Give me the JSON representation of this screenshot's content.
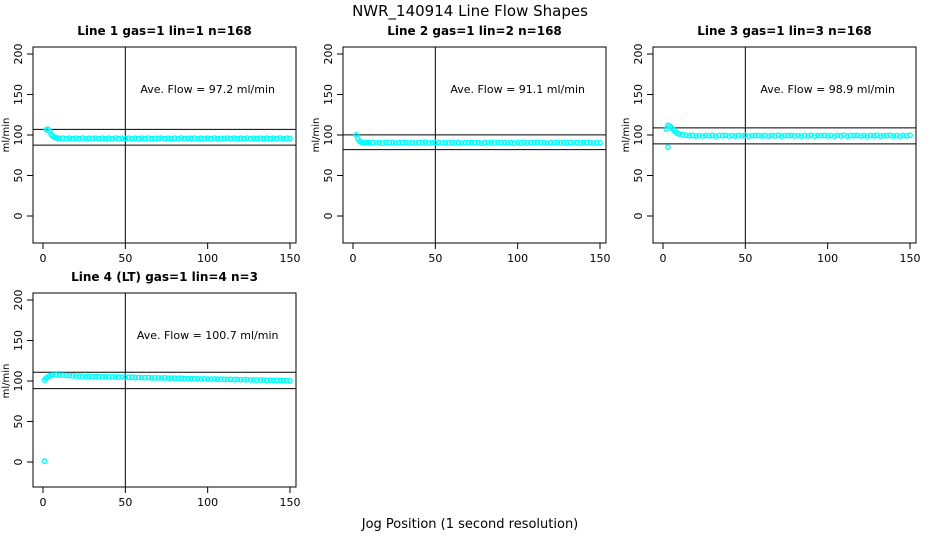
{
  "figure": {
    "title": "NWR_140914  Line Flow Shapes",
    "xlabel": "Jog Position (1 second resolution)",
    "background": "#ffffff",
    "point_color": "#00ffff",
    "line_color": "#000000"
  },
  "chart_data": [
    {
      "type": "scatter",
      "id": "line1",
      "title": "Line 1 gas=1 lin=1 n=168",
      "n": 168,
      "ylabel": "ml/min",
      "annotation": "Ave. Flow =  97.2  ml/min",
      "ave_flow": 97.2,
      "xlim": [
        0,
        150
      ],
      "xticks": [
        0,
        50,
        100,
        150
      ],
      "yticks": [
        0,
        50,
        100,
        150,
        200
      ],
      "vline_x": 50,
      "hlines": [
        106.9,
        87.5
      ],
      "points": [
        [
          2,
          106.5
        ],
        [
          3,
          107.0
        ],
        [
          4,
          104.5
        ],
        [
          5,
          100.8
        ],
        [
          6,
          98.4
        ],
        [
          7,
          97.2
        ],
        [
          8,
          96.6
        ],
        [
          9,
          96.1
        ],
        [
          10,
          95.8
        ],
        [
          12,
          96.2
        ],
        [
          14,
          95.5
        ],
        [
          16,
          96.0
        ],
        [
          18,
          95.3
        ],
        [
          20,
          96.1
        ],
        [
          22,
          95.6
        ],
        [
          24,
          96.3
        ],
        [
          26,
          95.4
        ],
        [
          28,
          95.9
        ],
        [
          30,
          95.8
        ],
        [
          32,
          96.2
        ],
        [
          34,
          95.5
        ],
        [
          36,
          96.0
        ],
        [
          38,
          95.3
        ],
        [
          40,
          96.1
        ],
        [
          42,
          95.6
        ],
        [
          44,
          96.3
        ],
        [
          46,
          95.4
        ],
        [
          48,
          95.9
        ],
        [
          50,
          95.8
        ],
        [
          52,
          96.2
        ],
        [
          54,
          95.5
        ],
        [
          56,
          96.0
        ],
        [
          58,
          95.3
        ],
        [
          60,
          96.1
        ],
        [
          62,
          95.6
        ],
        [
          64,
          96.3
        ],
        [
          66,
          95.4
        ],
        [
          68,
          95.9
        ],
        [
          70,
          95.8
        ],
        [
          72,
          96.2
        ],
        [
          74,
          95.5
        ],
        [
          76,
          96.0
        ],
        [
          78,
          95.3
        ],
        [
          80,
          96.1
        ],
        [
          82,
          95.6
        ],
        [
          84,
          96.3
        ],
        [
          86,
          95.4
        ],
        [
          88,
          95.9
        ],
        [
          90,
          95.8
        ],
        [
          92,
          96.2
        ],
        [
          94,
          95.5
        ],
        [
          96,
          96.0
        ],
        [
          98,
          95.3
        ],
        [
          100,
          96.1
        ],
        [
          102,
          95.6
        ],
        [
          104,
          96.3
        ],
        [
          106,
          95.4
        ],
        [
          108,
          95.9
        ],
        [
          110,
          95.8
        ],
        [
          112,
          96.2
        ],
        [
          114,
          95.5
        ],
        [
          116,
          96.0
        ],
        [
          118,
          95.3
        ],
        [
          120,
          96.1
        ],
        [
          122,
          95.6
        ],
        [
          124,
          96.3
        ],
        [
          126,
          95.4
        ],
        [
          128,
          95.9
        ],
        [
          130,
          95.8
        ],
        [
          132,
          96.2
        ],
        [
          134,
          95.5
        ],
        [
          136,
          96.0
        ],
        [
          138,
          95.3
        ],
        [
          140,
          96.1
        ],
        [
          142,
          95.6
        ],
        [
          144,
          96.3
        ],
        [
          146,
          95.4
        ],
        [
          148,
          95.9
        ],
        [
          150,
          95.8
        ]
      ]
    },
    {
      "type": "scatter",
      "id": "line2",
      "title": "Line 2 gas=1 lin=2 n=168",
      "n": 168,
      "ylabel": "ml/min",
      "annotation": "Ave. Flow =  91.1  ml/min",
      "ave_flow": 91.1,
      "xlim": [
        0,
        150
      ],
      "xticks": [
        0,
        50,
        100,
        150
      ],
      "yticks": [
        0,
        50,
        100,
        150,
        200
      ],
      "vline_x": 50,
      "hlines": [
        100.2,
        82.0
      ],
      "points": [
        [
          2,
          100.3
        ],
        [
          3,
          95.0
        ],
        [
          4,
          92.3
        ],
        [
          5,
          91.2
        ],
        [
          6,
          90.8
        ],
        [
          7,
          90.6
        ],
        [
          8,
          90.5
        ],
        [
          9,
          90.4
        ],
        [
          10,
          90.4
        ],
        [
          12,
          90.8
        ],
        [
          14,
          90.1
        ],
        [
          16,
          90.6
        ],
        [
          18,
          89.9
        ],
        [
          20,
          90.7
        ],
        [
          22,
          90.2
        ],
        [
          24,
          90.9
        ],
        [
          26,
          90.0
        ],
        [
          28,
          90.5
        ],
        [
          30,
          90.4
        ],
        [
          32,
          90.8
        ],
        [
          34,
          90.1
        ],
        [
          36,
          90.6
        ],
        [
          38,
          89.9
        ],
        [
          40,
          90.7
        ],
        [
          42,
          90.2
        ],
        [
          44,
          90.9
        ],
        [
          46,
          90.0
        ],
        [
          48,
          90.5
        ],
        [
          50,
          90.4
        ],
        [
          52,
          90.8
        ],
        [
          54,
          90.1
        ],
        [
          56,
          90.6
        ],
        [
          58,
          89.9
        ],
        [
          60,
          90.7
        ],
        [
          62,
          90.2
        ],
        [
          64,
          90.9
        ],
        [
          66,
          90.0
        ],
        [
          68,
          90.5
        ],
        [
          70,
          90.4
        ],
        [
          72,
          90.8
        ],
        [
          74,
          90.1
        ],
        [
          76,
          90.6
        ],
        [
          78,
          89.9
        ],
        [
          80,
          90.7
        ],
        [
          82,
          90.2
        ],
        [
          84,
          90.9
        ],
        [
          86,
          90.0
        ],
        [
          88,
          90.5
        ],
        [
          90,
          90.4
        ],
        [
          92,
          90.8
        ],
        [
          94,
          90.1
        ],
        [
          96,
          90.6
        ],
        [
          98,
          89.9
        ],
        [
          100,
          90.7
        ],
        [
          102,
          90.2
        ],
        [
          104,
          90.9
        ],
        [
          106,
          90.0
        ],
        [
          108,
          90.5
        ],
        [
          110,
          90.4
        ],
        [
          112,
          90.8
        ],
        [
          114,
          90.1
        ],
        [
          116,
          90.6
        ],
        [
          118,
          89.9
        ],
        [
          120,
          90.7
        ],
        [
          122,
          90.2
        ],
        [
          124,
          90.9
        ],
        [
          126,
          90.0
        ],
        [
          128,
          90.5
        ],
        [
          130,
          90.4
        ],
        [
          132,
          90.8
        ],
        [
          134,
          90.1
        ],
        [
          136,
          90.6
        ],
        [
          138,
          89.9
        ],
        [
          140,
          90.7
        ],
        [
          142,
          90.2
        ],
        [
          144,
          90.9
        ],
        [
          146,
          90.0
        ],
        [
          148,
          90.5
        ],
        [
          150,
          90.4
        ]
      ]
    },
    {
      "type": "scatter",
      "id": "line3",
      "title": "Line 3 gas=1 lin=3 n=168",
      "n": 168,
      "ylabel": "ml/min",
      "annotation": "Ave. Flow =  98.9  ml/min",
      "ave_flow": 98.9,
      "xlim": [
        0,
        150
      ],
      "xticks": [
        0,
        50,
        100,
        150
      ],
      "yticks": [
        0,
        50,
        100,
        150,
        200
      ],
      "vline_x": 50,
      "hlines": [
        108.8,
        89.0
      ],
      "points": [
        [
          3,
          85.0
        ],
        [
          2,
          107.5
        ],
        [
          3,
          111.8
        ],
        [
          4,
          111.2
        ],
        [
          5,
          109.5
        ],
        [
          6,
          107.3
        ],
        [
          7,
          105.2
        ],
        [
          8,
          103.4
        ],
        [
          9,
          102.0
        ],
        [
          10,
          101.1
        ],
        [
          12,
          100.2
        ],
        [
          14,
          99.6
        ],
        [
          16,
          99.1
        ],
        [
          18,
          99.5
        ],
        [
          20,
          98.8
        ],
        [
          22,
          99.3
        ],
        [
          24,
          98.6
        ],
        [
          26,
          99.4
        ],
        [
          28,
          98.9
        ],
        [
          30,
          99.6
        ],
        [
          32,
          98.7
        ],
        [
          34,
          99.2
        ],
        [
          36,
          99.1
        ],
        [
          38,
          99.5
        ],
        [
          40,
          98.8
        ],
        [
          42,
          99.3
        ],
        [
          44,
          98.6
        ],
        [
          46,
          99.4
        ],
        [
          48,
          98.9
        ],
        [
          50,
          99.6
        ],
        [
          52,
          98.7
        ],
        [
          54,
          99.2
        ],
        [
          56,
          99.1
        ],
        [
          58,
          99.5
        ],
        [
          60,
          98.8
        ],
        [
          62,
          99.3
        ],
        [
          64,
          98.6
        ],
        [
          66,
          99.4
        ],
        [
          68,
          98.9
        ],
        [
          70,
          99.6
        ],
        [
          72,
          98.7
        ],
        [
          74,
          99.2
        ],
        [
          76,
          99.1
        ],
        [
          78,
          99.5
        ],
        [
          80,
          98.8
        ],
        [
          82,
          99.3
        ],
        [
          84,
          98.6
        ],
        [
          86,
          99.4
        ],
        [
          88,
          98.9
        ],
        [
          90,
          99.6
        ],
        [
          92,
          98.7
        ],
        [
          94,
          99.2
        ],
        [
          96,
          99.1
        ],
        [
          98,
          99.5
        ],
        [
          100,
          98.8
        ],
        [
          102,
          99.3
        ],
        [
          104,
          98.6
        ],
        [
          106,
          99.4
        ],
        [
          108,
          98.9
        ],
        [
          110,
          99.6
        ],
        [
          112,
          98.7
        ],
        [
          114,
          99.2
        ],
        [
          116,
          99.1
        ],
        [
          118,
          99.5
        ],
        [
          120,
          98.8
        ],
        [
          122,
          99.3
        ],
        [
          124,
          98.6
        ],
        [
          126,
          99.4
        ],
        [
          128,
          98.9
        ],
        [
          130,
          99.6
        ],
        [
          132,
          98.7
        ],
        [
          134,
          99.2
        ],
        [
          136,
          99.1
        ],
        [
          138,
          99.5
        ],
        [
          140,
          98.8
        ],
        [
          142,
          99.3
        ],
        [
          144,
          98.6
        ],
        [
          146,
          99.4
        ],
        [
          148,
          98.9
        ],
        [
          150,
          99.6
        ]
      ]
    },
    {
      "type": "scatter",
      "id": "line4",
      "title": "Line 4 (LT) gas=1 lin=4 n=3",
      "n": 3,
      "ylabel": "ml/min",
      "annotation": "Ave. Flow =  100.7  ml/min",
      "ave_flow": 100.7,
      "xlim": [
        0,
        150
      ],
      "xticks": [
        0,
        50,
        100,
        150
      ],
      "yticks": [
        0,
        50,
        100,
        150,
        200
      ],
      "vline_x": 50,
      "hlines": [
        110.8,
        90.6
      ],
      "points": [
        [
          1,
          1.0
        ],
        [
          1,
          101.0
        ],
        [
          2,
          103.5
        ],
        [
          3,
          105.0
        ],
        [
          4,
          106.2
        ],
        [
          5,
          107.0
        ],
        [
          6,
          107.4
        ],
        [
          8,
          107.5
        ],
        [
          10,
          107.3
        ],
        [
          12,
          107.1
        ],
        [
          14,
          106.9
        ],
        [
          16,
          106.7
        ],
        [
          18,
          106.4
        ],
        [
          20,
          106.2
        ],
        [
          22,
          105.9
        ],
        [
          24,
          106.0
        ],
        [
          26,
          105.5
        ],
        [
          28,
          105.8
        ],
        [
          30,
          105.5
        ],
        [
          32,
          105.5
        ],
        [
          34,
          105.6
        ],
        [
          36,
          105.1
        ],
        [
          38,
          105.3
        ],
        [
          40,
          105.0
        ],
        [
          42,
          105.0
        ],
        [
          44,
          105.2
        ],
        [
          46,
          104.7
        ],
        [
          48,
          104.9
        ],
        [
          50,
          104.6
        ],
        [
          52,
          104.6
        ],
        [
          54,
          104.7
        ],
        [
          56,
          104.2
        ],
        [
          58,
          104.4
        ],
        [
          60,
          104.2
        ],
        [
          62,
          104.2
        ],
        [
          64,
          104.3
        ],
        [
          66,
          103.8
        ],
        [
          68,
          104.0
        ],
        [
          70,
          103.7
        ],
        [
          72,
          103.7
        ],
        [
          74,
          103.9
        ],
        [
          76,
          103.4
        ],
        [
          78,
          103.6
        ],
        [
          80,
          103.3
        ],
        [
          82,
          103.3
        ],
        [
          84,
          103.4
        ],
        [
          86,
          102.9
        ],
        [
          88,
          103.1
        ],
        [
          90,
          102.9
        ],
        [
          92,
          102.9
        ],
        [
          94,
          103.0
        ],
        [
          96,
          102.5
        ],
        [
          98,
          102.7
        ],
        [
          100,
          102.4
        ],
        [
          102,
          102.4
        ],
        [
          104,
          102.6
        ],
        [
          106,
          102.1
        ],
        [
          108,
          102.3
        ],
        [
          110,
          102.0
        ],
        [
          112,
          102.0
        ],
        [
          114,
          102.1
        ],
        [
          116,
          101.6
        ],
        [
          118,
          101.8
        ],
        [
          120,
          101.6
        ],
        [
          122,
          101.6
        ],
        [
          124,
          101.7
        ],
        [
          126,
          101.2
        ],
        [
          128,
          101.4
        ],
        [
          130,
          101.1
        ],
        [
          132,
          101.1
        ],
        [
          134,
          101.2
        ],
        [
          136,
          100.8
        ],
        [
          138,
          101.0
        ],
        [
          140,
          100.7
        ],
        [
          142,
          100.7
        ],
        [
          144,
          100.8
        ],
        [
          146,
          100.3
        ],
        [
          148,
          100.5
        ],
        [
          150,
          100.3
        ]
      ]
    }
  ]
}
